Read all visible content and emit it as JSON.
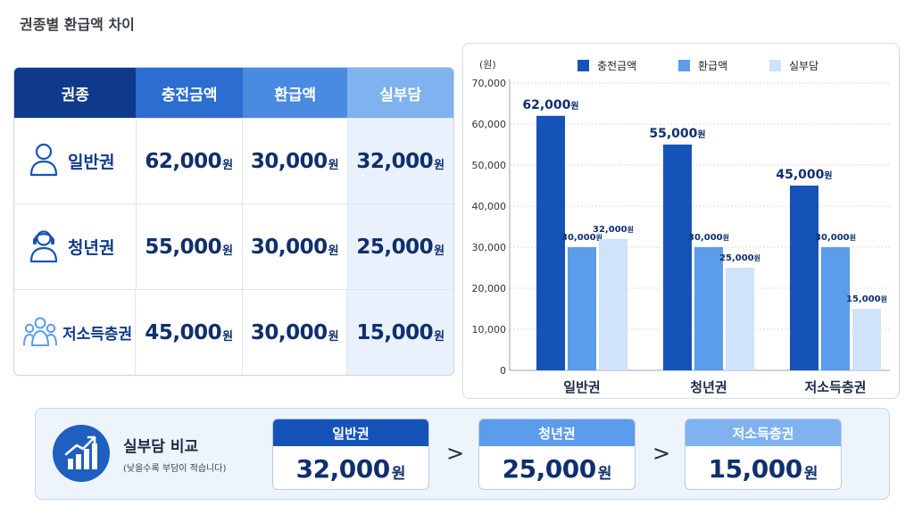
{
  "page_title": "권종별 환급액 차이",
  "table": {
    "headers": [
      "권종",
      "충전금액",
      "환급액",
      "실부담"
    ],
    "unit": "원",
    "rows": [
      {
        "type": "일반권",
        "icon": "person-icon",
        "charge": "62,000",
        "refund": "30,000",
        "burden": "32,000"
      },
      {
        "type": "청년권",
        "icon": "headset-person-icon",
        "charge": "55,000",
        "refund": "30,000",
        "burden": "25,000"
      },
      {
        "type": "저소득층권",
        "icon": "group-icon",
        "charge": "45,000",
        "refund": "30,000",
        "burden": "15,000"
      }
    ]
  },
  "chart_data": {
    "type": "bar",
    "unit_label": "(원)",
    "categories": [
      "일반권",
      "청년권",
      "저소득층권"
    ],
    "series": [
      {
        "name": "충전금액",
        "values": [
          62000,
          55000,
          45000
        ],
        "color": "#1553b8"
      },
      {
        "name": "환급액",
        "values": [
          30000,
          30000,
          30000
        ],
        "color": "#5b9cec"
      },
      {
        "name": "실부담",
        "values": [
          32000,
          25000,
          15000
        ],
        "color": "#cfe3fa"
      }
    ],
    "value_labels": [
      [
        "62,000",
        "55,000",
        "45,000"
      ],
      [
        "30,000",
        "30,000",
        "30,000"
      ],
      [
        "32,000",
        "25,000",
        "15,000"
      ]
    ],
    "value_label_unit": "원",
    "ylim": [
      0,
      70000
    ],
    "yticks": [
      "0",
      "10,000",
      "20,000",
      "30,000",
      "40,000",
      "50,000",
      "60,000",
      "70,000"
    ],
    "grid": true,
    "legend_position": "top"
  },
  "compare": {
    "title": "실부담 비교",
    "subtitle": "(낮을수록 부담이 적습니다)",
    "icon": "rising-bar-chart-icon",
    "separator": ">",
    "unit": "원",
    "items": [
      {
        "label": "일반권",
        "value": "32,000",
        "color": "#1553b8"
      },
      {
        "label": "청년권",
        "value": "25,000",
        "color": "#5b9cec"
      },
      {
        "label": "저소득층권",
        "value": "15,000",
        "color": "#7fb2ef"
      }
    ]
  }
}
